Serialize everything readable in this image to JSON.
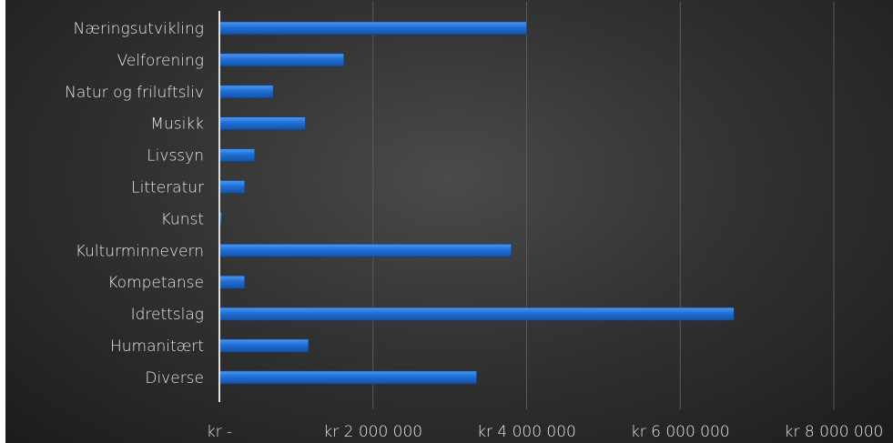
{
  "chart_data": {
    "type": "bar",
    "orientation": "horizontal",
    "categories": [
      "Næringsutvikling",
      "Velforening",
      "Natur og friluftsliv",
      "Musikk",
      "Livssyn",
      "Litteratur",
      "Kunst",
      "Kulturminnevern",
      "Kompetanse",
      "Idrettslag",
      "Humanitært",
      "Diverse"
    ],
    "values": [
      4000000,
      1620000,
      700000,
      1120000,
      460000,
      330000,
      30000,
      3800000,
      330000,
      6700000,
      1160000,
      3350000
    ],
    "xlim": [
      0,
      8000000
    ],
    "x_ticks": [
      0,
      2000000,
      4000000,
      6000000,
      8000000
    ],
    "x_tick_labels": [
      "kr -",
      "kr 2 000 000",
      "kr 4 000 000",
      "kr 6 000 000",
      "kr 8 000 000"
    ],
    "title": "",
    "xlabel": "",
    "ylabel": "",
    "grid": "vertical",
    "legend": "none",
    "colors": {
      "bar": "#1f6fd6",
      "bar_highlight": "#4f98f0",
      "text": "#e6e6e6",
      "gridline": "#5a5a5a",
      "axis": "#e0e0e0"
    }
  }
}
